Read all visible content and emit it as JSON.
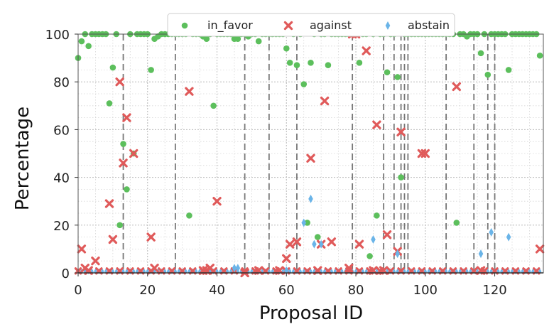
{
  "chart_data": {
    "type": "scatter",
    "title": "",
    "xlabel": "Proposal ID",
    "ylabel": "Percentage",
    "xlim": [
      0,
      134
    ],
    "ylim": [
      0,
      100
    ],
    "xticks": [
      "0",
      "20",
      "40",
      "60",
      "80",
      "100",
      "120"
    ],
    "yticks": [
      "0",
      "20",
      "40",
      "60",
      "80",
      "100"
    ],
    "grid": true,
    "legend_position": "top",
    "vlines": [
      13,
      28,
      48,
      55,
      63,
      79,
      88,
      91,
      93,
      94,
      95,
      106,
      114,
      118,
      120
    ],
    "series": [
      {
        "name": "in_favor",
        "color": "#5cbf5c",
        "marker": "circle",
        "x": [
          0,
          1,
          2,
          3,
          4,
          5,
          6,
          7,
          8,
          9,
          10,
          11,
          12,
          13,
          14,
          15,
          16,
          17,
          18,
          19,
          20,
          21,
          22,
          23,
          24,
          25,
          26,
          27,
          28,
          29,
          30,
          31,
          32,
          33,
          34,
          35,
          36,
          37,
          38,
          39,
          40,
          41,
          42,
          43,
          44,
          45,
          46,
          47,
          48,
          49,
          50,
          51,
          52,
          53,
          54,
          55,
          56,
          57,
          58,
          59,
          60,
          61,
          62,
          63,
          64,
          65,
          66,
          67,
          68,
          69,
          70,
          71,
          72,
          73,
          74,
          75,
          76,
          77,
          78,
          79,
          80,
          81,
          82,
          83,
          84,
          85,
          86,
          87,
          88,
          89,
          90,
          91,
          92,
          93,
          94,
          95,
          96,
          97,
          98,
          99,
          100,
          101,
          102,
          103,
          104,
          105,
          106,
          107,
          108,
          109,
          110,
          111,
          112,
          113,
          114,
          115,
          116,
          117,
          118,
          119,
          120,
          121,
          122,
          123,
          124,
          125,
          126,
          127,
          128,
          129,
          130,
          131,
          132,
          133
        ],
        "values": [
          90,
          97,
          100,
          95,
          100,
          100,
          100,
          100,
          100,
          71,
          86,
          100,
          20,
          54,
          35,
          100,
          50,
          100,
          100,
          100,
          100,
          85,
          98,
          99,
          100,
          100,
          100,
          100,
          100,
          100,
          100,
          100,
          24,
          100,
          100,
          100,
          99,
          98,
          100,
          70,
          100,
          100,
          100,
          100,
          100,
          98,
          98,
          100,
          100,
          99,
          100,
          100,
          97,
          100,
          100,
          100,
          100,
          100,
          100,
          100,
          94,
          88,
          100,
          87,
          100,
          79,
          21,
          88,
          100,
          15,
          100,
          100,
          87,
          100,
          100,
          100,
          100,
          100,
          100,
          100,
          100,
          88,
          100,
          100,
          7,
          100,
          24,
          100,
          100,
          84,
          100,
          100,
          82,
          40,
          100,
          100,
          100,
          100,
          100,
          100,
          100,
          100,
          100,
          100,
          100,
          100,
          100,
          100,
          100,
          21,
          100,
          100,
          99,
          100,
          100,
          100,
          92,
          100,
          83,
          100,
          100,
          100,
          100,
          100,
          85,
          100,
          100,
          100,
          100,
          100,
          100,
          100,
          100,
          91
        ]
      },
      {
        "name": "against",
        "color": "#e05a5a",
        "marker": "x",
        "x": [
          1,
          2,
          3,
          5,
          9,
          10,
          12,
          13,
          14,
          16,
          21,
          22,
          32,
          36,
          37,
          38,
          40,
          48,
          52,
          58,
          60,
          61,
          63,
          67,
          69,
          70,
          71,
          73,
          78,
          79,
          80,
          81,
          83,
          85,
          86,
          88,
          89,
          92,
          93,
          99,
          100,
          109,
          116,
          133
        ],
        "values": [
          10,
          2,
          1,
          5,
          29,
          14,
          80,
          46,
          65,
          50,
          15,
          2,
          76,
          1,
          1,
          2,
          30,
          0,
          1,
          1,
          6,
          12,
          13,
          48,
          1,
          12,
          72,
          13,
          2,
          100,
          100,
          12,
          93,
          1,
          62,
          1,
          16,
          9,
          59,
          50,
          50,
          78,
          1,
          10
        ]
      },
      {
        "name": "abstain",
        "color": "#6ab4e8",
        "marker": "diamond",
        "x": [
          45,
          46,
          60,
          65,
          67,
          68,
          70,
          85,
          92,
          116,
          119,
          124
        ],
        "values": [
          2,
          2,
          1,
          21,
          31,
          12,
          12,
          14,
          8,
          8,
          17,
          15
        ]
      }
    ]
  }
}
